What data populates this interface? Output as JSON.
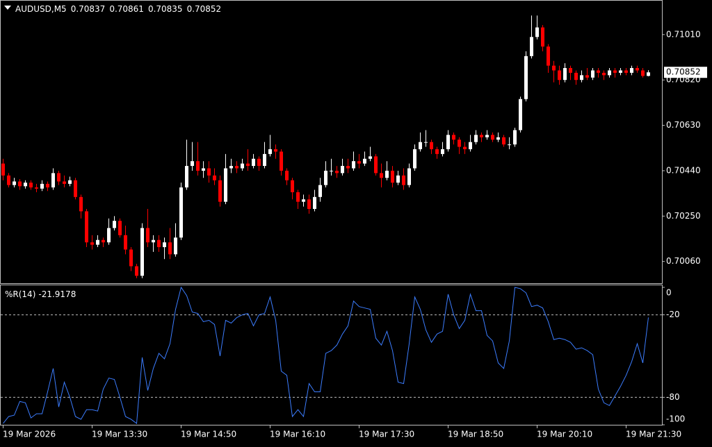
{
  "chart_data": [
    {
      "type": "candlestick",
      "title": "AUDUSD,M5",
      "categories": [
        "19 Mar 2026",
        null,
        null,
        null,
        null,
        null,
        null,
        null,
        null,
        null,
        null,
        null,
        null,
        null,
        null,
        null,
        "19 Mar 13:30",
        null,
        null,
        null,
        null,
        null,
        null,
        null,
        null,
        null,
        null,
        null,
        null,
        null,
        null,
        null,
        "19 Mar 14:50",
        null,
        null,
        null,
        null,
        null,
        null,
        null,
        null,
        null,
        null,
        null,
        null,
        null,
        null,
        null,
        "19 Mar 16:10",
        null,
        null,
        null,
        null,
        null,
        null,
        null,
        null,
        null,
        null,
        null,
        null,
        null,
        null,
        null,
        "19 Mar 17:30",
        null,
        null,
        null,
        null,
        null,
        null,
        null,
        null,
        null,
        null,
        null,
        null,
        null,
        null,
        null,
        "19 Mar 18:50",
        null,
        null,
        null,
        null,
        null,
        null,
        null,
        null,
        null,
        null,
        null,
        null,
        null,
        null,
        null,
        "19 Mar 20:10",
        null,
        null,
        null,
        null,
        null,
        null,
        null,
        null,
        null,
        null,
        null,
        null,
        null,
        null,
        null,
        "19 Mar 21:30",
        null,
        null,
        null,
        null
      ],
      "open": [
        0.7047,
        0.7042,
        0.7038,
        0.70395,
        0.70375,
        0.7039,
        0.7037,
        0.70365,
        0.70385,
        0.7037,
        0.7043,
        0.70395,
        0.70385,
        0.704,
        0.7033,
        0.7027,
        0.7014,
        0.7013,
        0.7015,
        0.7014,
        0.702,
        0.7023,
        0.7017,
        0.7011,
        0.7004,
        0.7,
        0.702,
        0.7014,
        0.7015,
        0.7012,
        0.7014,
        0.7009,
        0.7016,
        0.7037,
        0.7046,
        0.7048,
        0.7044,
        0.7045,
        0.7042,
        0.704,
        0.7031,
        0.7045,
        0.7046,
        0.7045,
        0.7047,
        0.7046,
        0.7049,
        0.7046,
        0.7051,
        0.7053,
        0.7052,
        0.7044,
        0.704,
        0.7035,
        0.7031,
        0.7032,
        0.7028,
        0.7033,
        0.7038,
        0.7044,
        0.7044,
        0.7043,
        0.7046,
        0.7045,
        0.7048,
        0.7047,
        0.7049,
        0.705,
        0.7043,
        0.7041,
        0.7044,
        0.7039,
        0.7042,
        0.7038,
        0.7045,
        0.7053,
        0.7056,
        0.7056,
        0.7053,
        0.7051,
        0.7053,
        0.7059,
        0.7057,
        0.7054,
        0.7053,
        0.7056,
        0.7059,
        0.7058,
        0.7059,
        0.7057,
        0.7058,
        0.7055,
        0.7055,
        0.7061,
        0.7074,
        0.7092,
        0.71,
        0.7104,
        0.7096,
        0.7088,
        0.7086,
        0.7082,
        0.7087,
        0.7085,
        0.7082,
        0.7084,
        0.7083,
        0.7086,
        0.7085,
        0.7084,
        0.7086,
        0.7085,
        0.7086,
        0.7085,
        0.7087,
        0.7086,
        0.70837
      ],
      "high": [
        0.7049,
        0.7043,
        0.7041,
        0.70405,
        0.704,
        0.704,
        0.70385,
        0.704,
        0.70395,
        0.7045,
        0.7044,
        0.7042,
        0.70415,
        0.7041,
        0.7034,
        0.7028,
        0.7017,
        0.7017,
        0.7016,
        0.7024,
        0.7025,
        0.7024,
        0.7021,
        0.7012,
        0.7005,
        0.7022,
        0.7028,
        0.7017,
        0.7017,
        0.7016,
        0.702,
        0.7022,
        0.7039,
        0.7057,
        0.7056,
        0.7056,
        0.7048,
        0.7048,
        0.7045,
        0.7042,
        0.7051,
        0.7049,
        0.7048,
        0.7049,
        0.7053,
        0.7051,
        0.705,
        0.7056,
        0.7059,
        0.7055,
        0.7053,
        0.7045,
        0.7041,
        0.7036,
        0.7034,
        0.7034,
        0.7036,
        0.7041,
        0.7048,
        0.7049,
        0.7046,
        0.7049,
        0.7049,
        0.7052,
        0.7051,
        0.7052,
        0.7054,
        0.7051,
        0.7047,
        0.7048,
        0.7046,
        0.7044,
        0.7045,
        0.7047,
        0.7055,
        0.706,
        0.7061,
        0.7057,
        0.7054,
        0.7056,
        0.7061,
        0.706,
        0.7058,
        0.7056,
        0.7059,
        0.7061,
        0.706,
        0.7061,
        0.706,
        0.706,
        0.7059,
        0.7058,
        0.7062,
        0.7075,
        0.7094,
        0.7109,
        0.7109,
        0.7105,
        0.7097,
        0.709,
        0.7088,
        0.7089,
        0.7088,
        0.7086,
        0.7086,
        0.7087,
        0.7087,
        0.7087,
        0.7086,
        0.7087,
        0.7087,
        0.7087,
        0.7087,
        0.7088,
        0.7088,
        0.7087,
        0.70861
      ],
      "low": [
        0.704,
        0.7037,
        0.7037,
        0.7036,
        0.70365,
        0.7036,
        0.7035,
        0.70355,
        0.70355,
        0.7036,
        0.7038,
        0.7037,
        0.70375,
        0.7032,
        0.7024,
        0.7012,
        0.7011,
        0.7012,
        0.7012,
        0.7013,
        0.7019,
        0.7016,
        0.7009,
        0.7002,
        0.6999,
        0.6999,
        0.7012,
        0.701,
        0.701,
        0.7007,
        0.7007,
        0.7008,
        0.7015,
        0.7036,
        0.7044,
        0.7042,
        0.7041,
        0.7039,
        0.7038,
        0.7029,
        0.703,
        0.7043,
        0.7043,
        0.7044,
        0.7044,
        0.7045,
        0.7044,
        0.7045,
        0.705,
        0.7049,
        0.7042,
        0.7038,
        0.7032,
        0.7028,
        0.7029,
        0.7026,
        0.7027,
        0.7031,
        0.7037,
        0.7042,
        0.7041,
        0.7042,
        0.7043,
        0.7044,
        0.7045,
        0.7046,
        0.7048,
        0.7042,
        0.7037,
        0.704,
        0.7037,
        0.7038,
        0.7036,
        0.7037,
        0.7044,
        0.7052,
        0.7054,
        0.7051,
        0.7049,
        0.705,
        0.7052,
        0.7055,
        0.7051,
        0.7051,
        0.7052,
        0.7055,
        0.7056,
        0.7057,
        0.7056,
        0.7056,
        0.7054,
        0.7053,
        0.7054,
        0.706,
        0.7073,
        0.7091,
        0.7099,
        0.7094,
        0.7085,
        0.7081,
        0.708,
        0.7081,
        0.7082,
        0.708,
        0.7081,
        0.7082,
        0.7082,
        0.7083,
        0.7082,
        0.7083,
        0.7083,
        0.7084,
        0.7084,
        0.7084,
        0.7085,
        0.7083,
        0.70835
      ],
      "close": [
        0.7042,
        0.7038,
        0.70395,
        0.70375,
        0.7039,
        0.7037,
        0.70365,
        0.70385,
        0.7037,
        0.7043,
        0.70395,
        0.70385,
        0.704,
        0.7033,
        0.7027,
        0.7014,
        0.7013,
        0.7015,
        0.7014,
        0.702,
        0.7023,
        0.7017,
        0.7011,
        0.7004,
        0.7,
        0.702,
        0.7014,
        0.7015,
        0.7012,
        0.7014,
        0.7009,
        0.7016,
        0.7037,
        0.7046,
        0.7048,
        0.7044,
        0.7045,
        0.7042,
        0.704,
        0.7031,
        0.7045,
        0.7046,
        0.7045,
        0.7047,
        0.7046,
        0.7049,
        0.7046,
        0.7051,
        0.7053,
        0.7052,
        0.7044,
        0.704,
        0.7035,
        0.7031,
        0.7032,
        0.7028,
        0.7033,
        0.7038,
        0.7044,
        0.7044,
        0.7043,
        0.7046,
        0.7045,
        0.7048,
        0.7047,
        0.7049,
        0.705,
        0.7043,
        0.7041,
        0.7044,
        0.7039,
        0.7042,
        0.7038,
        0.7045,
        0.7053,
        0.7056,
        0.7056,
        0.7053,
        0.7051,
        0.7053,
        0.7059,
        0.7057,
        0.7054,
        0.7053,
        0.7056,
        0.7059,
        0.7058,
        0.7059,
        0.7057,
        0.7058,
        0.7055,
        0.7055,
        0.7061,
        0.7074,
        0.7092,
        0.71,
        0.7104,
        0.7096,
        0.7088,
        0.7086,
        0.7082,
        0.7087,
        0.7085,
        0.7082,
        0.7084,
        0.7083,
        0.7086,
        0.7085,
        0.7084,
        0.7086,
        0.7085,
        0.7086,
        0.7085,
        0.7087,
        0.7086,
        0.70837,
        0.70852
      ],
      "up_color": "#ffffff",
      "down_color": "#ff0000",
      "ylim": [
        0.69969,
        0.71152
      ],
      "yticks": [
        {
          "value": 0.7101,
          "label": "0.71010"
        },
        {
          "value": 0.7082,
          "label": "0.70820"
        },
        {
          "value": 0.7063,
          "label": "0.70630"
        },
        {
          "value": 0.7044,
          "label": "0.70440"
        },
        {
          "value": 0.7025,
          "label": "0.70250"
        },
        {
          "value": 0.7006,
          "label": "0.70060"
        }
      ],
      "grid": false
    },
    {
      "type": "line",
      "series": [
        {
          "name": "%R(14)",
          "color": "#3c7dff",
          "values": [
            -99,
            -94,
            -93,
            -83,
            -84,
            -95,
            -92,
            -92,
            -76,
            -59,
            -87,
            -69,
            -80,
            -94,
            -96,
            -89,
            -89,
            -90,
            -74,
            -66,
            -67,
            -80,
            -94,
            -96,
            -99,
            -51,
            -75,
            -59,
            -48,
            -52,
            -41,
            -16,
            0,
            -6,
            -18,
            -19,
            -25,
            -24,
            -27,
            -50,
            -24,
            -26,
            -22,
            -20,
            -19,
            -28,
            -20,
            -19,
            -7,
            -24,
            -61,
            -64,
            -94,
            -89,
            -94,
            -70,
            -76,
            -76,
            -48,
            -46,
            -42,
            -34,
            -28,
            -10,
            -14,
            -15,
            -16,
            -37,
            -42,
            -32,
            -46,
            -69,
            -70,
            -41,
            -7,
            -16,
            -31,
            -40,
            -34,
            -32,
            -5,
            -20,
            -30,
            -24,
            -5,
            -17,
            -17,
            -35,
            -39,
            -55,
            -59,
            -39,
            0,
            -1,
            -4,
            -14,
            -13,
            -15,
            -25,
            -38,
            -37,
            -38,
            -40,
            -45,
            -44,
            -46,
            -49,
            -74,
            -84,
            -86,
            -79,
            -72,
            -64,
            -54,
            -41,
            -55,
            -21.9178
          ]
        }
      ],
      "ylim": [
        -100,
        1.5
      ],
      "yticks": [
        0,
        -20,
        -80,
        -100
      ],
      "levels": [
        -20,
        -80
      ],
      "grid": false
    }
  ]
}
